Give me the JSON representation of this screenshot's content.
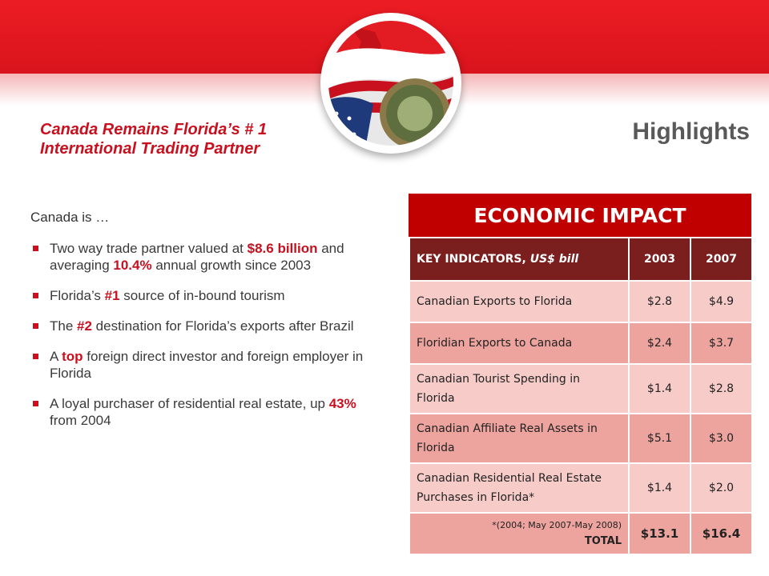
{
  "header": {
    "subtitle_line1": "Canada Remains Florida’s # 1",
    "subtitle_line2": "International Trading Partner",
    "title": "Highlights"
  },
  "colors": {
    "accent": "#c8101e",
    "table_header": "#7b1e1e",
    "table_title": "#c00000"
  },
  "emblem": {
    "icon": "flags-and-state-seal-emblem"
  },
  "intro": "Canada is …",
  "bullets": [
    {
      "pre": "Two way trade partner valued at ",
      "hl1": "$8.6 billion",
      "mid": " and averaging ",
      "hl2": "10.4%",
      "post": " annual growth since 2003"
    },
    {
      "pre": "Florida’s ",
      "hl1": "#1",
      "post": " source of in-bound tourism"
    },
    {
      "pre": "The ",
      "hl1": "#2",
      "post": " destination for Florida’s exports after Brazil"
    },
    {
      "pre": "A ",
      "hl1": "top",
      "post": " foreign direct investor and foreign employer in Florida"
    },
    {
      "pre": "A loyal purchaser of residential real estate, up ",
      "hl1": "43%",
      "post": " from 2004"
    }
  ],
  "table": {
    "title": "ECONOMIC IMPACT",
    "header": {
      "label": "KEY INDICATORS, ",
      "label_italic": "US$ bill",
      "col1": "2003",
      "col2": "2007"
    },
    "rows": [
      {
        "label": "Canadian Exports to Florida",
        "v2003": "$2.8",
        "v2007": "$4.9"
      },
      {
        "label": "Floridian Exports to Canada",
        "v2003": "$2.4",
        "v2007": "$3.7"
      },
      {
        "label": "Canadian Tourist Spending in Florida",
        "v2003": "$1.4",
        "v2007": "$2.8"
      },
      {
        "label": "Canadian Affiliate Real Assets in Florida",
        "v2003": "$5.1",
        "v2007": "$3.0"
      },
      {
        "label": "Canadian Residential Real Estate Purchases in Florida*",
        "v2003": "$1.4",
        "v2007": "$2.0"
      }
    ],
    "total": {
      "note": "*(2004; May 2007-May 2008)",
      "label": "TOTAL",
      "v2003": "$13.1",
      "v2007": "$16.4"
    }
  }
}
